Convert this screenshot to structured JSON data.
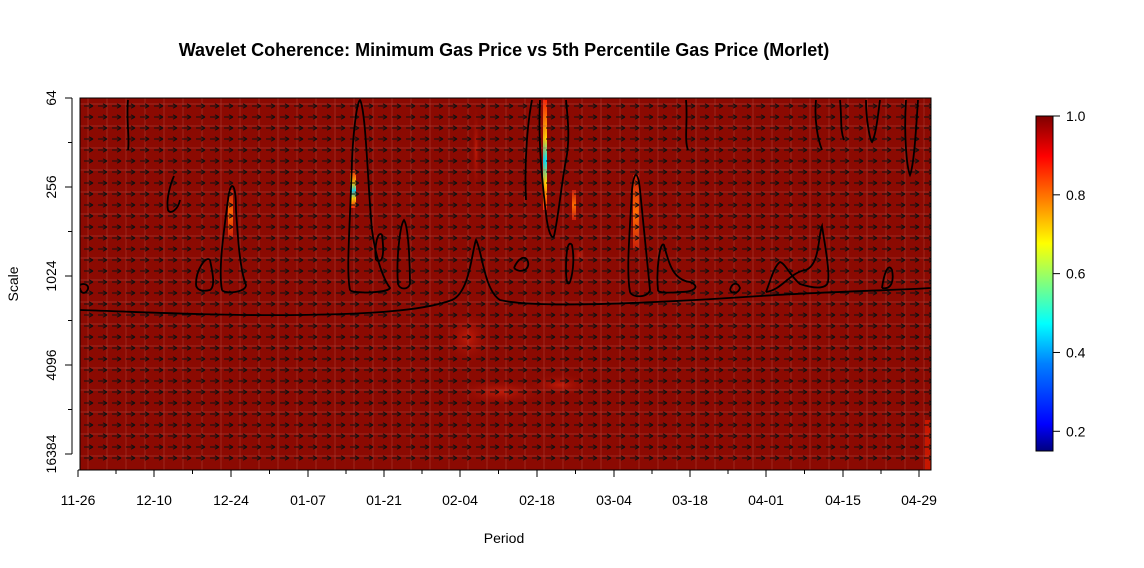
{
  "chart_data": {
    "type": "heatmap",
    "title": "Wavelet Coherence: Minimum Gas Price vs  5th Percentile Gas Price (Morlet)",
    "xlabel": "Period",
    "ylabel": "Scale",
    "x_tick_labels": [
      "11-26",
      "12-10",
      "12-24",
      "01-07",
      "01-21",
      "02-04",
      "02-18",
      "03-04",
      "03-18",
      "04-01",
      "04-15",
      "04-29"
    ],
    "y_tick_labels": [
      "64",
      "256",
      "1024",
      "4096",
      "16384"
    ],
    "y_scale": "log2",
    "colorbar": {
      "range": [
        0.15,
        1.0
      ],
      "tick_labels": [
        "1.0",
        "0.8",
        "0.6",
        "0.4",
        "0.2"
      ],
      "tick_values": [
        1.0,
        0.8,
        0.6,
        0.4,
        0.2
      ],
      "colormap": [
        "#00007F",
        "#0000FF",
        "#007FFF",
        "#00FFFF",
        "#7FFF7F",
        "#FFFF00",
        "#FF7F00",
        "#FF0000",
        "#7F0000"
      ]
    },
    "background_coherence": 0.98,
    "background_color": "#8B0A02",
    "grid": true,
    "phase_arrows": "right",
    "low_coherence_features": [
      {
        "period": "01-16",
        "scale_top": 64,
        "scale_bottom": 512,
        "min_coherence": 0.3
      },
      {
        "period": "02-19",
        "scale_top": 64,
        "scale_bottom": 400,
        "min_coherence": 0.2
      },
      {
        "period": "12-24",
        "scale_top": 256,
        "scale_bottom": 700,
        "min_coherence": 0.8
      },
      {
        "period": "03-07",
        "scale_top": 256,
        "scale_bottom": 900,
        "min_coherence": 0.85
      }
    ]
  }
}
